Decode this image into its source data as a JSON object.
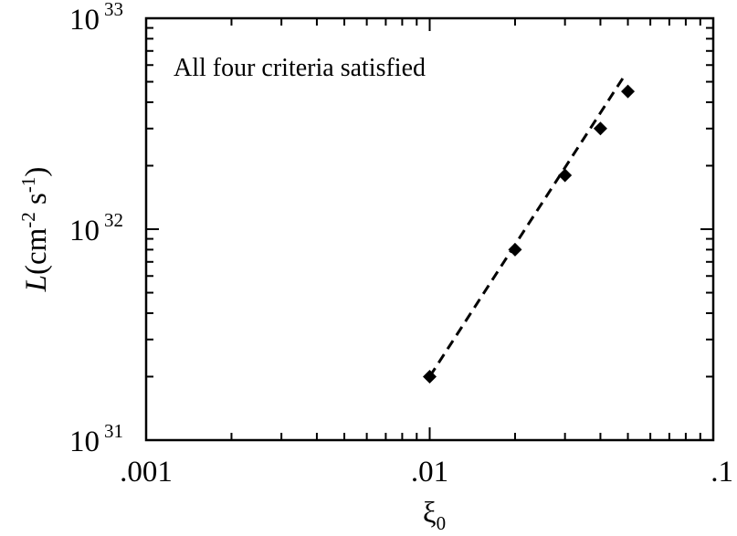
{
  "chart_data": {
    "type": "scatter",
    "title": "",
    "annotation": "All four criteria satisfied",
    "xlabel": {
      "symbol": "ξ",
      "subscript": "0"
    },
    "ylabel": {
      "symbol": "L",
      "unit_base": "(cm",
      "unit_exp1": "-2",
      "unit_mid": " s",
      "unit_exp2": "-1",
      "unit_end": ")"
    },
    "xscale": "log",
    "yscale": "log",
    "xlim": [
      0.001,
      0.1
    ],
    "ylim": [
      1e+31,
      1e+33
    ],
    "x_ticks": [
      {
        "value": 0.001,
        "label": ".001"
      },
      {
        "value": 0.01,
        "label": ".01"
      },
      {
        "value": 0.1,
        "label": ".1"
      }
    ],
    "y_ticks": [
      {
        "value": 1e+31,
        "base": "10",
        "exp": "31"
      },
      {
        "value": 1e+32,
        "base": "10",
        "exp": "32"
      },
      {
        "value": 1e+33,
        "base": "10",
        "exp": "33"
      }
    ],
    "grid": false,
    "series": [
      {
        "marker": "diamond",
        "color": "#000000",
        "points": [
          {
            "x": 0.01,
            "y": 2e+31
          },
          {
            "x": 0.02,
            "y": 8e+31
          },
          {
            "x": 0.03,
            "y": 1.8e+32
          },
          {
            "x": 0.04,
            "y": 3e+32
          },
          {
            "x": 0.05,
            "y": 4.5e+32
          }
        ]
      }
    ],
    "fit_line": {
      "style": "dashed",
      "color": "#000000",
      "points": [
        {
          "x": 0.01,
          "y": 2e+31
        },
        {
          "x": 0.048,
          "y": 5.2e+32
        }
      ]
    }
  }
}
